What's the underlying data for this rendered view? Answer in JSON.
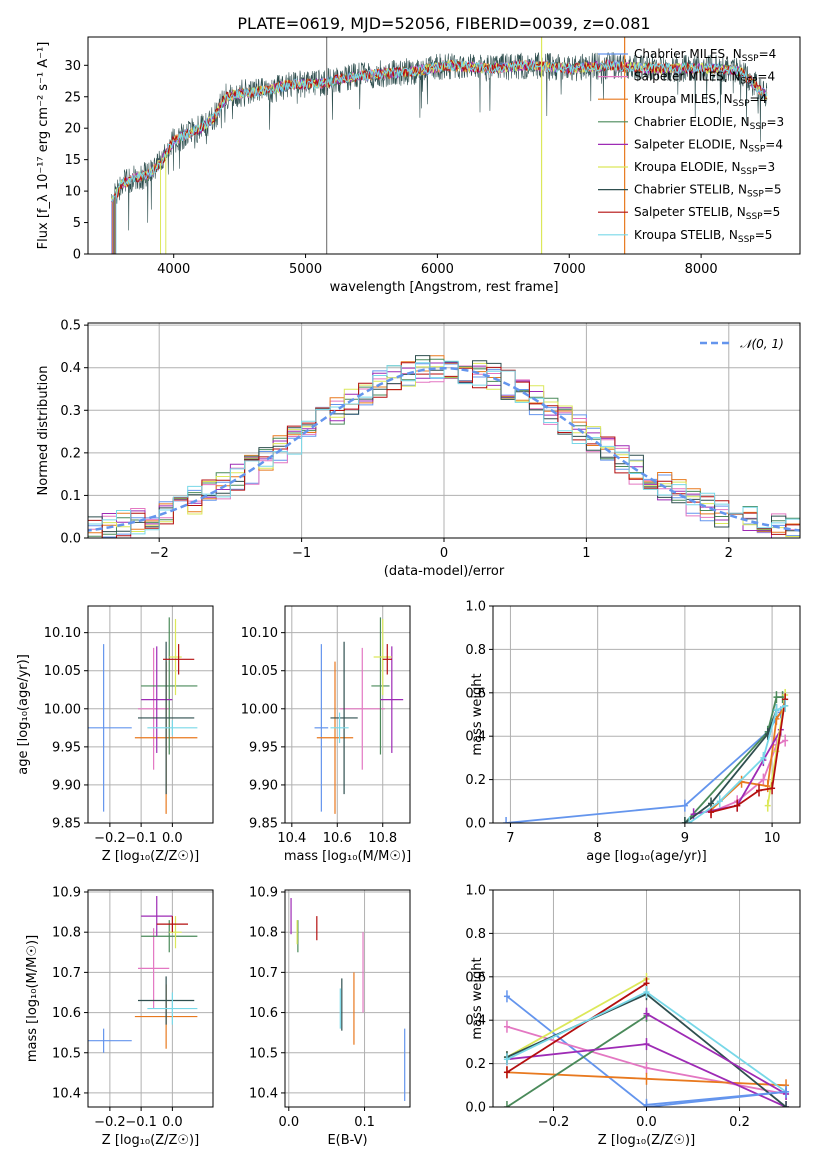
{
  "chart_data": [
    {
      "id": "spectrum",
      "type": "line",
      "title": "PLATE=0619, MJD=52056, FIBERID=0039, z=0.081",
      "xlabel": "wavelength [Angstrom, rest frame]",
      "ylabel": "Flux [f_λ 10⁻¹⁷ erg cm⁻² s⁻¹ A⁻¹]",
      "xlim": [
        3350,
        8750
      ],
      "ylim": [
        0,
        34.5
      ],
      "xticks": [
        4000,
        5000,
        6000,
        7000,
        8000
      ],
      "yticks": [
        0,
        5,
        10,
        15,
        20,
        25,
        30
      ],
      "legend_position": "right",
      "series": [
        {
          "name": "Chabrier MILES, N",
          "sub": "SSP",
          "suffix": "=4",
          "color": "#6495ED"
        },
        {
          "name": "Salpeter MILES, N",
          "sub": "SSP",
          "suffix": "=4",
          "color": "#E377C2"
        },
        {
          "name": "Kroupa MILES, N",
          "sub": "SSP",
          "suffix": "=4",
          "color": "#E8791F"
        },
        {
          "name": "Chabrier ELODIE, N",
          "sub": "SSP",
          "suffix": "=3",
          "color": "#4A8A5A"
        },
        {
          "name": "Salpeter ELODIE, N",
          "sub": "SSP",
          "suffix": "=4",
          "color": "#9E2BB5"
        },
        {
          "name": "Kroupa ELODIE, N",
          "sub": "SSP",
          "suffix": "=3",
          "color": "#DCE85A"
        },
        {
          "name": "Chabrier STELIB, N",
          "sub": "SSP",
          "suffix": "=5",
          "color": "#2F4F4F"
        },
        {
          "name": "Salpeter STELIB, N",
          "sub": "SSP",
          "suffix": "=5",
          "color": "#B40F0F"
        },
        {
          "name": "Kroupa STELIB, N",
          "sub": "SSP",
          "suffix": "=5",
          "color": "#78D8E8"
        }
      ],
      "continuum": {
        "x": [
          3530,
          3600,
          3700,
          3800,
          3900,
          4000,
          4100,
          4200,
          4300,
          4400,
          4500,
          4700,
          4900,
          5100,
          5300,
          5500,
          5800,
          6100,
          6400,
          6700,
          7000,
          7300,
          7600,
          7900,
          8100,
          8300,
          8500
        ],
        "y": [
          8,
          11,
          12,
          12.5,
          14.5,
          18,
          19,
          20,
          21.5,
          25,
          25.5,
          26,
          27,
          27,
          28,
          28.5,
          29,
          30,
          29.5,
          30,
          29.5,
          30,
          29.5,
          29.5,
          29.5,
          29,
          25
        ]
      },
      "spikes": [
        {
          "x": 5160,
          "color": "#808080"
        },
        {
          "x": 6790,
          "color": "#DCE85A"
        },
        {
          "x": 7420,
          "color": "#E8791F"
        }
      ]
    },
    {
      "id": "residuals",
      "type": "line",
      "xlabel": "(data-model)/error",
      "ylabel": "Normed distribution",
      "xlim": [
        -2.5,
        2.5
      ],
      "ylim": [
        0,
        0.505
      ],
      "xticks": [
        -2,
        -1,
        0,
        1,
        2
      ],
      "yticks": [
        0.0,
        0.1,
        0.2,
        0.3,
        0.4,
        0.5
      ],
      "legend": {
        "label": "𝒩(0, 1)",
        "color": "#6495ED",
        "position": "top-right"
      },
      "bin_width": 0.1
    },
    {
      "id": "age-vs-z",
      "type": "scatter",
      "xlabel": "Z [log₁₀(Z/Z☉)]",
      "ylabel": "age  [log₁₀(age/yr)]",
      "xlim": [
        -0.27,
        0.13
      ],
      "ylim": [
        9.85,
        10.135
      ],
      "xticks": [
        -0.2,
        -0.1,
        0.0
      ],
      "yticks": [
        9.85,
        9.9,
        9.95,
        10.0,
        10.05,
        10.1
      ],
      "points": [
        {
          "x": -0.22,
          "xe": 0.09,
          "y": 9.975,
          "ye": 0.11,
          "color": "#6495ED"
        },
        {
          "x": -0.06,
          "xe": 0.05,
          "y": 10.0,
          "ye": 0.08,
          "color": "#E377C2"
        },
        {
          "x": -0.02,
          "xe": 0.1,
          "y": 9.962,
          "ye": 0.1,
          "color": "#E8791F"
        },
        {
          "x": -0.01,
          "xe": 0.09,
          "y": 10.03,
          "ye": 0.09,
          "color": "#4A8A5A"
        },
        {
          "x": -0.05,
          "xe": 0.05,
          "y": 10.012,
          "ye": 0.07,
          "color": "#9E2BB5"
        },
        {
          "x": 0.01,
          "xe": 0.02,
          "y": 10.068,
          "ye": 0.05,
          "color": "#DCE85A"
        },
        {
          "x": -0.02,
          "xe": 0.09,
          "y": 9.988,
          "ye": 0.1,
          "color": "#2F4F4F"
        },
        {
          "x": 0.02,
          "xe": 0.05,
          "y": 10.065,
          "ye": 0.02,
          "color": "#B40F0F"
        },
        {
          "x": 0.0,
          "xe": 0.08,
          "y": 9.975,
          "ye": 0.01,
          "color": "#78D8E8"
        }
      ]
    },
    {
      "id": "age-vs-mass",
      "type": "scatter",
      "xlabel": "mass [log₁₀(M/M☉)]",
      "xlim": [
        10.37,
        10.92
      ],
      "ylim": [
        9.85,
        10.135
      ],
      "xticks": [
        10.4,
        10.6,
        10.8
      ],
      "yticks": [
        9.85,
        9.9,
        9.95,
        10.0,
        10.05,
        10.1
      ],
      "points": [
        {
          "x": 10.53,
          "xe": 0.03,
          "y": 9.975,
          "ye": 0.11,
          "color": "#6495ED"
        },
        {
          "x": 10.71,
          "xe": 0.1,
          "y": 10.0,
          "ye": 0.08,
          "color": "#E377C2"
        },
        {
          "x": 10.59,
          "xe": 0.08,
          "y": 9.962,
          "ye": 0.1,
          "color": "#E8791F"
        },
        {
          "x": 10.79,
          "xe": 0.04,
          "y": 10.03,
          "ye": 0.09,
          "color": "#4A8A5A"
        },
        {
          "x": 10.84,
          "xe": 0.05,
          "y": 10.012,
          "ye": 0.07,
          "color": "#9E2BB5"
        },
        {
          "x": 10.8,
          "xe": 0.04,
          "y": 10.068,
          "ye": 0.05,
          "color": "#DCE85A"
        },
        {
          "x": 10.63,
          "xe": 0.06,
          "y": 9.988,
          "ye": 0.1,
          "color": "#2F4F4F"
        },
        {
          "x": 10.82,
          "xe": 0.02,
          "y": 10.065,
          "ye": 0.02,
          "color": "#B40F0F"
        },
        {
          "x": 10.61,
          "xe": 0.04,
          "y": 9.975,
          "ye": 0.02,
          "color": "#78D8E8"
        }
      ]
    },
    {
      "id": "mass-weight-vs-age",
      "type": "line",
      "xlabel": "age  [log₁₀(age/yr)]",
      "ylabel": "mass weight",
      "xlim": [
        6.8,
        10.32
      ],
      "ylim": [
        0,
        1.0
      ],
      "xticks": [
        7,
        8,
        9,
        10
      ],
      "yticks": [
        0.0,
        0.2,
        0.4,
        0.6,
        0.8,
        1.0
      ],
      "series": [
        {
          "color": "#6495ED",
          "x": [
            6.95,
            9.0,
            9.95,
            10.1
          ],
          "y": [
            0.0,
            0.08,
            0.42,
            0.51
          ]
        },
        {
          "color": "#E377C2",
          "x": [
            9.3,
            9.6,
            9.9,
            10.05,
            10.15
          ],
          "y": [
            0.05,
            0.1,
            0.2,
            0.36,
            0.38
          ]
        },
        {
          "color": "#E8791F",
          "x": [
            9.3,
            9.65,
            9.95,
            10.05,
            10.15
          ],
          "y": [
            0.06,
            0.19,
            0.17,
            0.48,
            0.54
          ]
        },
        {
          "color": "#4A8A5A",
          "x": [
            9.0,
            9.95,
            10.05,
            10.12
          ],
          "y": [
            0.0,
            0.42,
            0.58,
            0.58
          ]
        },
        {
          "color": "#9E2BB5",
          "x": [
            9.1,
            9.6,
            9.9,
            10.1
          ],
          "y": [
            0.04,
            0.08,
            0.29,
            0.43
          ]
        },
        {
          "color": "#DCE85A",
          "x": [
            9.95,
            10.05,
            10.15
          ],
          "y": [
            0.08,
            0.33,
            0.59
          ]
        },
        {
          "color": "#2F4F4F",
          "x": [
            9.0,
            9.3,
            9.95,
            10.05
          ],
          "y": [
            0.0,
            0.09,
            0.41,
            0.52
          ]
        },
        {
          "color": "#B40F0F",
          "x": [
            9.3,
            9.6,
            9.85,
            10.0,
            10.15
          ],
          "y": [
            0.05,
            0.08,
            0.15,
            0.16,
            0.57
          ]
        },
        {
          "color": "#78D8E8",
          "x": [
            9.05,
            9.4,
            9.9,
            10.05,
            10.15
          ],
          "y": [
            0.0,
            0.1,
            0.3,
            0.52,
            0.54
          ]
        }
      ]
    },
    {
      "id": "mass-vs-z",
      "type": "scatter",
      "xlabel": "Z [log₁₀(Z/Z☉)]",
      "ylabel": "mass [log₁₀(M/M☉)]",
      "xlim": [
        -0.27,
        0.13
      ],
      "ylim": [
        10.365,
        10.905
      ],
      "xticks": [
        -0.2,
        -0.1,
        0.0
      ],
      "yticks": [
        10.4,
        10.5,
        10.6,
        10.7,
        10.8,
        10.9
      ],
      "points": [
        {
          "x": -0.22,
          "xe": 0.09,
          "y": 10.53,
          "ye": 0.03,
          "color": "#6495ED"
        },
        {
          "x": -0.06,
          "xe": 0.05,
          "y": 10.71,
          "ye": 0.1,
          "color": "#E377C2"
        },
        {
          "x": -0.02,
          "xe": 0.1,
          "y": 10.59,
          "ye": 0.08,
          "color": "#E8791F"
        },
        {
          "x": -0.01,
          "xe": 0.09,
          "y": 10.79,
          "ye": 0.04,
          "color": "#4A8A5A"
        },
        {
          "x": -0.05,
          "xe": 0.05,
          "y": 10.84,
          "ye": 0.05,
          "color": "#9E2BB5"
        },
        {
          "x": 0.01,
          "xe": 0.02,
          "y": 10.8,
          "ye": 0.04,
          "color": "#DCE85A"
        },
        {
          "x": -0.02,
          "xe": 0.09,
          "y": 10.63,
          "ye": 0.06,
          "color": "#2F4F4F"
        },
        {
          "x": 0.0,
          "xe": 0.05,
          "y": 10.82,
          "ye": 0.02,
          "color": "#B40F0F"
        },
        {
          "x": 0.0,
          "xe": 0.08,
          "y": 10.61,
          "ye": 0.04,
          "color": "#78D8E8"
        }
      ]
    },
    {
      "id": "mass-vs-ebv",
      "type": "scatter",
      "xlabel": "E(B-V)",
      "xlim": [
        -0.005,
        0.16
      ],
      "ylim": [
        10.365,
        10.905
      ],
      "xticks": [
        0.0,
        0.1
      ],
      "yticks": [
        10.4,
        10.5,
        10.6,
        10.7,
        10.8,
        10.9
      ],
      "points": [
        {
          "x": 0.153,
          "y": 10.47,
          "ye": 0.09,
          "color": "#6495ED"
        },
        {
          "x": 0.098,
          "y": 10.7,
          "ye": 0.1,
          "color": "#E377C2"
        },
        {
          "x": 0.086,
          "y": 10.61,
          "ye": 0.09,
          "color": "#E8791F"
        },
        {
          "x": 0.012,
          "y": 10.79,
          "ye": 0.04,
          "color": "#4A8A5A"
        },
        {
          "x": 0.003,
          "y": 10.84,
          "ye": 0.045,
          "color": "#9E2BB5"
        },
        {
          "x": 0.011,
          "y": 10.8,
          "ye": 0.03,
          "color": "#DCE85A"
        },
        {
          "x": 0.07,
          "y": 10.62,
          "ye": 0.065,
          "color": "#2F4F4F"
        },
        {
          "x": 0.037,
          "y": 10.81,
          "ye": 0.03,
          "color": "#B40F0F"
        },
        {
          "x": 0.068,
          "y": 10.61,
          "ye": 0.05,
          "color": "#78D8E8"
        }
      ]
    },
    {
      "id": "mass-weight-vs-z",
      "type": "line",
      "xlabel": "Z [log₁₀(Z/Z☉)]",
      "ylabel": "mass weight",
      "xlim": [
        -0.33,
        0.33
      ],
      "ylim": [
        0,
        1.0
      ],
      "xticks": [
        -0.2,
        0.0,
        0.2
      ],
      "yticks": [
        0.0,
        0.2,
        0.4,
        0.6,
        0.8,
        1.0
      ],
      "series": [
        {
          "color": "#6495ED",
          "x": [
            -0.3,
            0.0,
            0.3
          ],
          "y": [
            0.51,
            0.0,
            0.07
          ]
        },
        {
          "color": "#E377C2",
          "x": [
            -0.3,
            0.0,
            0.3
          ],
          "y": [
            0.37,
            0.18,
            0.06
          ]
        },
        {
          "color": "#E8791F",
          "x": [
            -0.3,
            0.0,
            0.3
          ],
          "y": [
            0.16,
            0.13,
            0.1
          ]
        },
        {
          "color": "#4A8A5A",
          "x": [
            -0.3,
            0.0
          ],
          "y": [
            0.0,
            0.42
          ]
        },
        {
          "color": "#9E2BB5",
          "x": [
            -0.3,
            0.0,
            0.3
          ],
          "y": [
            0.22,
            0.29,
            0.0
          ]
        },
        {
          "color": "#DCE85A",
          "x": [
            -0.3,
            0.0
          ],
          "y": [
            0.23,
            0.59
          ]
        },
        {
          "color": "#2F4F4F",
          "x": [
            -0.3,
            0.0,
            0.3
          ],
          "y": [
            0.23,
            0.52,
            0.0
          ]
        },
        {
          "color": "#B40F0F",
          "x": [
            -0.3,
            0.0
          ],
          "y": [
            0.16,
            0.57
          ]
        },
        {
          "color": "#78D8E8",
          "x": [
            -0.3,
            0.0,
            0.3
          ],
          "y": [
            0.22,
            0.53,
            0.07
          ]
        },
        {
          "color": "#9E2BB5",
          "x": [
            0.0,
            0.3
          ],
          "y": [
            0.43,
            0.06
          ]
        },
        {
          "color": "#6495ED",
          "x": [
            0.0,
            0.3
          ],
          "y": [
            0.01,
            0.07
          ]
        }
      ]
    }
  ]
}
